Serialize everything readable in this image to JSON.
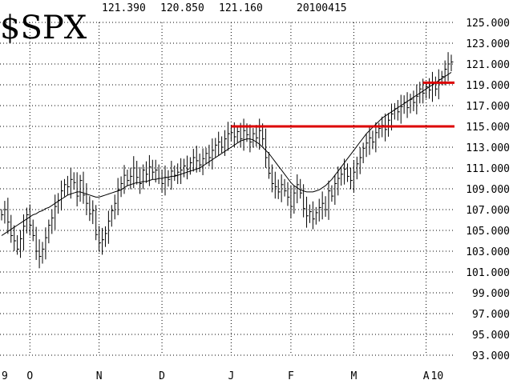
{
  "chart_data": {
    "type": "ohlc",
    "symbol": "$SPX",
    "header": {
      "high": "121.390",
      "low": "120.850",
      "close": "121.160",
      "date": "20100415"
    },
    "ylim": [
      93.0,
      125.0
    ],
    "y_ticks": [
      "125.000",
      "123.000",
      "121.000",
      "119.000",
      "117.000",
      "115.000",
      "113.000",
      "111.000",
      "109.000",
      "107.000",
      "105.000",
      "103.000",
      "101.000",
      "99.000",
      "97.000",
      "95.000",
      "93.000"
    ],
    "x_ticks": [
      {
        "label": "9",
        "index": 0
      },
      {
        "label": "O",
        "index": 9
      },
      {
        "label": "N",
        "index": 31
      },
      {
        "label": "D",
        "index": 51
      },
      {
        "label": "J",
        "index": 73
      },
      {
        "label": "F",
        "index": 92
      },
      {
        "label": "M",
        "index": 112
      },
      {
        "label": "A",
        "index": 135
      },
      {
        "label": "10",
        "index": 138
      }
    ],
    "grid": true,
    "close": [
      106.5,
      107.0,
      105.8,
      104.5,
      104.0,
      103.2,
      104.2,
      105.4,
      106.5,
      105.5,
      104.5,
      103.0,
      102.5,
      103.2,
      104.3,
      105.5,
      106.2,
      107.3,
      107.9,
      108.8,
      109.4,
      109.2,
      109.9,
      109.6,
      108.3,
      109.8,
      108.4,
      107.6,
      106.6,
      106.9,
      104.6,
      103.8,
      104.1,
      104.7,
      105.9,
      106.9,
      107.6,
      108.9,
      109.5,
      110.3,
      109.8,
      110.2,
      111.0,
      110.1,
      109.5,
      110.8,
      110.4,
      111.1,
      110.6,
      110.8,
      110.0,
      109.5,
      110.1,
      109.9,
      110.7,
      110.3,
      110.6,
      110.8,
      111.2,
      110.9,
      111.5,
      112.0,
      111.7,
      111.3,
      111.9,
      112.4,
      112.0,
      112.7,
      113.2,
      113.5,
      113.0,
      113.8,
      114.3,
      114.4,
      114.0,
      114.5,
      113.8,
      114.6,
      114.2,
      113.5,
      114.3,
      113.9,
      114.6,
      113.8,
      112.0,
      110.5,
      109.5,
      109.2,
      108.7,
      109.4,
      108.8,
      108.2,
      107.3,
      108.6,
      109.4,
      108.6,
      107.1,
      106.4,
      106.8,
      106.1,
      106.7,
      107.2,
      107.6,
      107.0,
      108.8,
      108.3,
      109.5,
      110.0,
      110.4,
      110.9,
      110.2,
      109.8,
      110.6,
      111.4,
      112.0,
      112.9,
      113.4,
      113.9,
      113.5,
      114.4,
      114.8,
      115.1,
      114.7,
      115.6,
      116.2,
      116.7,
      116.4,
      116.9,
      117.3,
      116.8,
      117.6,
      117.3,
      117.9,
      118.6,
      118.2,
      118.8,
      118.5,
      119.1,
      118.6,
      119.5,
      119.8,
      120.5,
      121.0,
      121.2
    ],
    "moving_average": [
      104.5,
      104.7,
      104.9,
      105.1,
      105.3,
      105.5,
      105.7,
      105.9,
      106.1,
      106.3,
      106.5,
      106.6,
      106.8,
      106.9,
      107.1,
      107.2,
      107.4,
      107.6,
      107.8,
      108.0,
      108.2,
      108.4,
      108.5,
      108.6,
      108.7,
      108.7,
      108.6,
      108.5,
      108.4,
      108.3,
      108.2,
      108.2,
      108.3,
      108.4,
      108.5,
      108.6,
      108.7,
      108.8,
      108.9,
      109.1,
      109.3,
      109.4,
      109.5,
      109.6,
      109.6,
      109.7,
      109.7,
      109.8,
      109.9,
      109.9,
      110.0,
      110.0,
      110.1,
      110.1,
      110.2,
      110.2,
      110.3,
      110.4,
      110.5,
      110.6,
      110.7,
      110.8,
      110.9,
      111.0,
      111.2,
      111.4,
      111.6,
      111.8,
      112.0,
      112.2,
      112.4,
      112.6,
      112.8,
      113.0,
      113.2,
      113.4,
      113.6,
      113.7,
      113.8,
      113.8,
      113.7,
      113.5,
      113.3,
      113.0,
      112.7,
      112.4,
      112.0,
      111.6,
      111.2,
      110.8,
      110.4,
      110.0,
      109.6,
      109.3,
      109.1,
      108.9,
      108.8,
      108.7,
      108.7,
      108.7,
      108.8,
      108.9,
      109.1,
      109.3,
      109.6,
      109.9,
      110.3,
      110.7,
      111.1,
      111.5,
      111.9,
      112.3,
      112.7,
      113.1,
      113.5,
      113.9,
      114.3,
      114.6,
      114.9,
      115.2,
      115.5,
      115.8,
      116.0,
      116.2,
      116.4,
      116.6,
      116.8,
      117.0,
      117.2,
      117.4,
      117.6,
      117.8,
      118.0,
      118.2,
      118.4,
      118.6,
      118.8,
      119.0,
      119.2,
      119.4,
      119.6,
      119.8,
      120.0,
      120.2
    ],
    "horizontal_lines": [
      {
        "value": 115.0,
        "from_index": 73,
        "to_index": 146,
        "color": "#dd0000"
      },
      {
        "value": 119.2,
        "from_index": 134,
        "to_index": 146,
        "color": "#dd0000"
      }
    ]
  }
}
